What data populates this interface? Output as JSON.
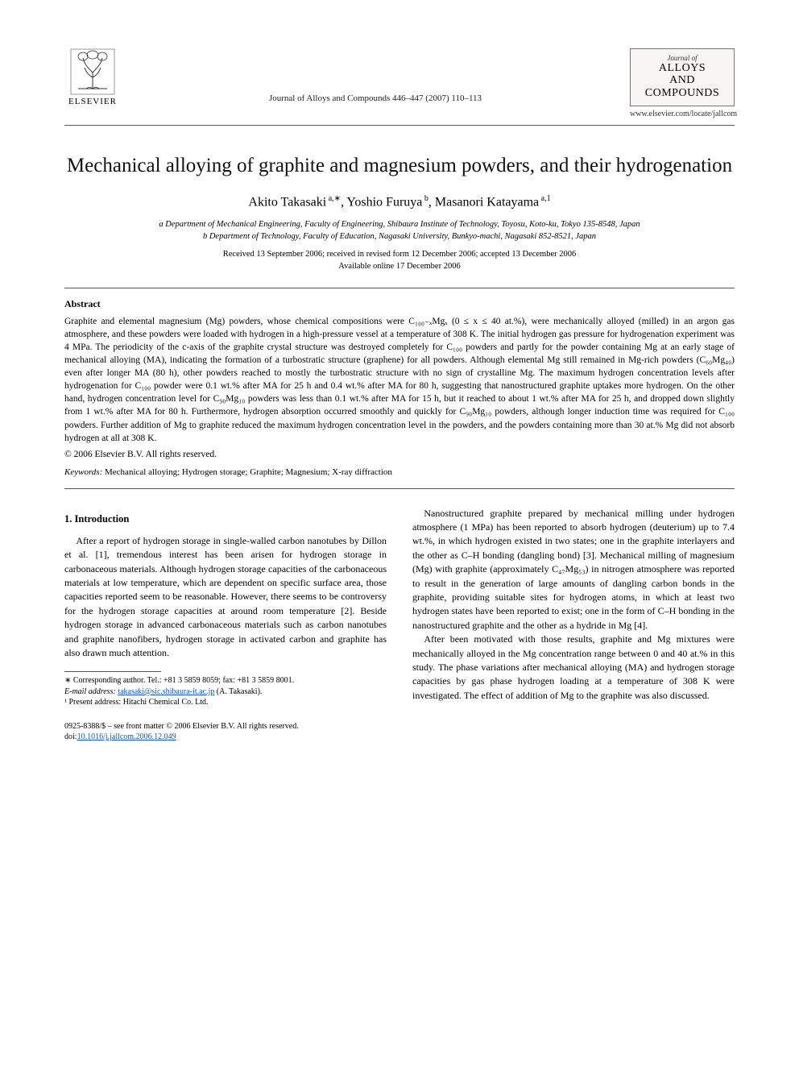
{
  "publisher": "ELSEVIER",
  "journal_ref": "Journal of Alloys and Compounds 446–447 (2007) 110–113",
  "journal_brand_top": "Journal of",
  "journal_brand_line1": "ALLOYS",
  "journal_brand_line2": "AND COMPOUNDS",
  "locate_url": "www.elsevier.com/locate/jallcom",
  "title": "Mechanical alloying of graphite and magnesium powders, and their hydrogenation",
  "authors_html": "Akito Takasaki<sup> a,∗</sup>, Yoshio Furuya<sup> b</sup>, Masanori Katayama<sup> a,1</sup>",
  "affiliation_a": "a Department of Mechanical Engineering, Faculty of Engineering, Shibaura Institute of Technology, Toyosu, Koto-ku, Tokyo 135-8548, Japan",
  "affiliation_b": "b Department of Technology, Faculty of Education, Nagasaki University, Bunkyo-machi, Nagasaki 852-8521, Japan",
  "dates_line1": "Received 13 September 2006; received in revised form 12 December 2006; accepted 13 December 2006",
  "dates_line2": "Available online 17 December 2006",
  "abstract_label": "Abstract",
  "abstract_text": "Graphite and elemental magnesium (Mg) powders, whose chemical compositions were C₁₀₀₋ₓMgₓ (0 ≤ x ≤ 40 at.%), were mechanically alloyed (milled) in an argon gas atmosphere, and these powders were loaded with hydrogen in a high-pressure vessel at a temperature of 308 K. The initial hydrogen gas pressure for hydrogenation experiment was 4 MPa. The periodicity of the c-axis of the graphite crystal structure was destroyed completely for C₁₀₀ powders and partly for the powder containing Mg at an early stage of mechanical alloying (MA), indicating the formation of a turbostratic structure (graphene) for all powders. Although elemental Mg still remained in Mg-rich powders (C₆₀Mg₄₀) even after longer MA (80 h), other powders reached to mostly the turbostratic structure with no sign of crystalline Mg. The maximum hydrogen concentration levels after hydrogenation for C₁₀₀ powder were 0.1 wt.% after MA for 25 h and 0.4 wt.% after MA for 80 h, suggesting that nanostructured graphite uptakes more hydrogen. On the other hand, hydrogen concentration level for C₉₀Mg₁₀ powders was less than 0.1 wt.% after MA for 15 h, but it reached to about 1 wt.% after MA for 25 h, and dropped down slightly from 1 wt.% after MA for 80 h. Furthermore, hydrogen absorption occurred smoothly and quickly for C₉₀Mg₁₀ powders, although longer induction time was required for C₁₀₀ powders. Further addition of Mg to graphite reduced the maximum hydrogen concentration level in the powders, and the powders containing more than 30 at.% Mg did not absorb hydrogen at all at 308 K.",
  "copyright": "© 2006 Elsevier B.V. All rights reserved.",
  "keywords_label": "Keywords:",
  "keywords": "Mechanical alloying; Hydrogen storage; Graphite; Magnesium; X-ray diffraction",
  "intro_heading": "1.  Introduction",
  "col1_p1": "After a report of hydrogen storage in single-walled carbon nanotubes by Dillon et al. [1], tremendous interest has been arisen for hydrogen storage in carbonaceous materials. Although hydrogen storage capacities of the carbonaceous materials at low temperature, which are dependent on specific surface area, those capacities reported seem to be reasonable. However, there seems to be controversy for the hydrogen storage capacities at around room temperature [2]. Beside hydrogen storage in advanced carbonaceous materials such as carbon nanotubes and graphite nanofibers, hydrogen storage in activated carbon and graphite has also drawn much attention.",
  "col2_p1": "Nanostructured graphite prepared by mechanical milling under hydrogen atmosphere (1 MPa) has been reported to absorb hydrogen (deuterium) up to 7.4 wt.%, in which hydrogen existed in two states; one in the graphite interlayers and the other as C–H bonding (dangling bond) [3]. Mechanical milling of magnesium (Mg) with graphite (approximately C₄₇Mg₅₃) in nitrogen atmosphere was reported to result in the generation of large amounts of dangling carbon bonds in the graphite, providing suitable sites for hydrogen atoms, in which at least two hydrogen states have been reported to exist; one in the form of C–H bonding in the nanostructured graphite and the other as a hydride in Mg [4].",
  "col2_p2": "After been motivated with those results, graphite and Mg mixtures were mechanically alloyed in the Mg concentration range between 0 and 40 at.% in this study. The phase variations after mechanical alloying (MA) and hydrogen storage capacities by gas phase hydrogen loading at a temperature of 308 K were investigated. The effect of addition of Mg to the graphite was also discussed.",
  "footnote_corr": "∗ Corresponding author. Tel.: +81 3 5859 8059; fax: +81 3 5859 8001.",
  "footnote_email_label": "E-mail address:",
  "footnote_email": "takasaki@sic.shibaura-it.ac.jp",
  "footnote_email_tail": "(A. Takasaki).",
  "footnote_present": "¹ Present address: Hitachi Chemical Co. Ltd.",
  "footer_line1": "0925-8388/$ – see front matter © 2006 Elsevier B.V. All rights reserved.",
  "footer_doi_label": "doi:",
  "footer_doi": "10.1016/j.jallcom.2006.12.049",
  "colors": {
    "text": "#000000",
    "link": "#1155cc",
    "rule": "#555555",
    "brand_box_bg": "#f7f6f3"
  }
}
